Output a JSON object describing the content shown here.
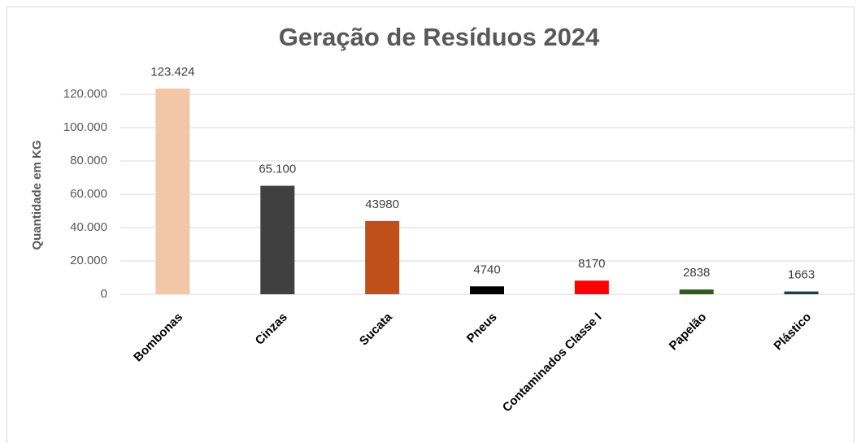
{
  "chart_data": {
    "type": "bar",
    "title": "Geração de Resíduos 2024",
    "y_label": "Quantidade em KG",
    "categories": [
      "Bombonas",
      "Cinzas",
      "Sucata",
      "Pneus",
      "Contaminados Classe I",
      "Papelão",
      "Plástico"
    ],
    "values": [
      123424,
      65100,
      43980,
      4740,
      8170,
      2838,
      1663
    ],
    "value_labels": [
      "123.424",
      "65.100",
      "43980",
      "4740",
      "8170",
      "2838",
      "1663"
    ],
    "colors": [
      "#f4c6a8",
      "#404040",
      "#c0501a",
      "#000000",
      "#ff0000",
      "#2e5a1c",
      "#1f3a4d"
    ],
    "ylim": [
      0,
      130000
    ],
    "yticks": [
      0,
      {
        "value": 20000,
        "label": "20.000"
      },
      {
        "value": 40000,
        "label": "40.000"
      },
      {
        "value": 60000,
        "label": "60.000"
      },
      {
        "value": 80000,
        "label": "80.000"
      },
      {
        "value": 100000,
        "label": "100.000"
      },
      {
        "value": 120000,
        "label": "120.000"
      }
    ],
    "grid": true
  }
}
